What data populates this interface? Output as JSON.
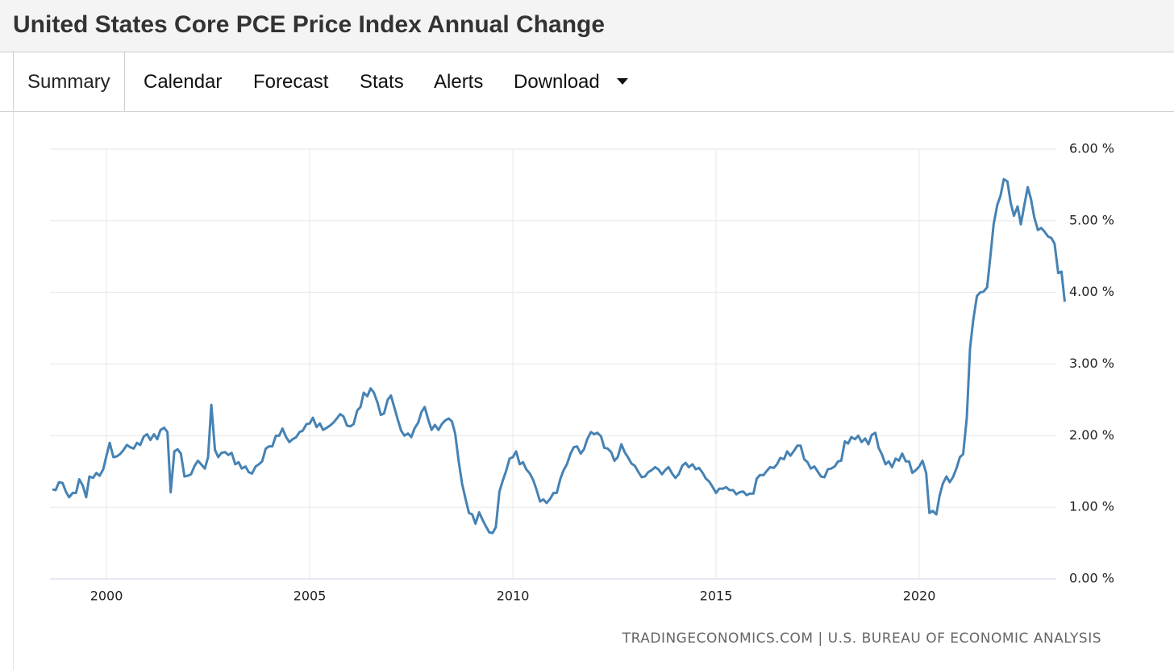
{
  "header": {
    "title": "United States Core PCE Price Index Annual Change"
  },
  "tabs": [
    "Summary",
    "Calendar",
    "Forecast",
    "Stats",
    "Alerts",
    "Download"
  ],
  "chart_data": {
    "type": "line",
    "color": "#4682b4",
    "grid": true,
    "source": "TRADINGECONOMICS.COM | U.S. BUREAU OF ECONOMIC ANALYSIS",
    "xlim": [
      1998.61,
      2023.61
    ],
    "xticks": [
      2000,
      2005,
      2010,
      2015,
      2020
    ],
    "ylim": [
      0,
      6
    ],
    "yticks": [
      {
        "value": 0,
        "label": "0.00 %"
      },
      {
        "value": 1,
        "label": "1.00 %"
      },
      {
        "value": 2,
        "label": "2.00 %"
      },
      {
        "value": 3,
        "label": "3.00 %"
      },
      {
        "value": 4,
        "label": "4.00 %"
      },
      {
        "value": 5,
        "label": "5.00 %"
      },
      {
        "value": 6,
        "label": "6.00 %"
      }
    ],
    "x": [
      1998.67,
      1998.75,
      1998.83,
      1998.92,
      1999,
      1999.08,
      1999.17,
      1999.25,
      1999.33,
      1999.42,
      1999.5,
      1999.58,
      1999.67,
      1999.75,
      1999.83,
      1999.92,
      2000,
      2000.08,
      2000.17,
      2000.25,
      2000.33,
      2000.42,
      2000.5,
      2000.58,
      2000.67,
      2000.75,
      2000.83,
      2000.92,
      2001,
      2001.08,
      2001.17,
      2001.25,
      2001.33,
      2001.42,
      2001.5,
      2001.58,
      2001.67,
      2001.75,
      2001.83,
      2001.92,
      2002,
      2002.08,
      2002.17,
      2002.25,
      2002.33,
      2002.42,
      2002.5,
      2002.58,
      2002.67,
      2002.75,
      2002.83,
      2002.92,
      2003,
      2003.08,
      2003.17,
      2003.25,
      2003.33,
      2003.42,
      2003.5,
      2003.58,
      2003.67,
      2003.75,
      2003.83,
      2003.92,
      2004,
      2004.08,
      2004.17,
      2004.25,
      2004.33,
      2004.42,
      2004.5,
      2004.58,
      2004.67,
      2004.75,
      2004.83,
      2004.92,
      2005,
      2005.08,
      2005.17,
      2005.25,
      2005.33,
      2005.42,
      2005.5,
      2005.58,
      2005.67,
      2005.75,
      2005.83,
      2005.92,
      2006,
      2006.08,
      2006.17,
      2006.25,
      2006.33,
      2006.42,
      2006.5,
      2006.58,
      2006.67,
      2006.75,
      2006.83,
      2006.92,
      2007,
      2007.08,
      2007.17,
      2007.25,
      2007.33,
      2007.42,
      2007.5,
      2007.58,
      2007.67,
      2007.75,
      2007.83,
      2007.92,
      2008,
      2008.08,
      2008.17,
      2008.25,
      2008.33,
      2008.42,
      2008.5,
      2008.58,
      2008.67,
      2008.75,
      2008.83,
      2008.92,
      2009,
      2009.08,
      2009.17,
      2009.25,
      2009.33,
      2009.42,
      2009.5,
      2009.58,
      2009.67,
      2009.75,
      2009.83,
      2009.92,
      2010,
      2010.08,
      2010.17,
      2010.25,
      2010.33,
      2010.42,
      2010.5,
      2010.58,
      2010.67,
      2010.75,
      2010.83,
      2010.92,
      2011,
      2011.08,
      2011.17,
      2011.25,
      2011.33,
      2011.42,
      2011.5,
      2011.58,
      2011.67,
      2011.75,
      2011.83,
      2011.92,
      2012,
      2012.08,
      2012.17,
      2012.25,
      2012.33,
      2012.42,
      2012.5,
      2012.58,
      2012.67,
      2012.75,
      2012.83,
      2012.92,
      2013,
      2013.08,
      2013.17,
      2013.25,
      2013.33,
      2013.42,
      2013.5,
      2013.58,
      2013.67,
      2013.75,
      2013.83,
      2013.92,
      2014,
      2014.08,
      2014.17,
      2014.25,
      2014.33,
      2014.42,
      2014.5,
      2014.58,
      2014.67,
      2014.75,
      2014.83,
      2014.92,
      2015,
      2015.08,
      2015.17,
      2015.25,
      2015.33,
      2015.42,
      2015.5,
      2015.58,
      2015.67,
      2015.75,
      2015.83,
      2015.92,
      2016,
      2016.08,
      2016.17,
      2016.25,
      2016.33,
      2016.42,
      2016.5,
      2016.58,
      2016.67,
      2016.75,
      2016.83,
      2016.92,
      2017,
      2017.08,
      2017.17,
      2017.25,
      2017.33,
      2017.42,
      2017.5,
      2017.58,
      2017.67,
      2017.75,
      2017.83,
      2017.92,
      2018,
      2018.08,
      2018.17,
      2018.25,
      2018.33,
      2018.42,
      2018.5,
      2018.58,
      2018.67,
      2018.75,
      2018.83,
      2018.92,
      2019,
      2019.08,
      2019.17,
      2019.25,
      2019.33,
      2019.42,
      2019.5,
      2019.58,
      2019.67,
      2019.75,
      2019.83,
      2019.92,
      2020,
      2020.08,
      2020.17,
      2020.25,
      2020.33,
      2020.42,
      2020.5,
      2020.58,
      2020.67,
      2020.75,
      2020.83,
      2020.92,
      2021,
      2021.08,
      2021.17,
      2021.25,
      2021.33,
      2021.42,
      2021.5,
      2021.58,
      2021.67,
      2021.75,
      2021.83,
      2021.92,
      2022,
      2022.08,
      2022.17,
      2022.25,
      2022.33,
      2022.42,
      2022.5,
      2022.58,
      2022.67,
      2022.75,
      2022.83,
      2022.92,
      2023,
      2023.08,
      2023.17,
      2023.25,
      2023.33,
      2023.42,
      2023.5,
      2023.58
    ],
    "values": [
      1.25,
      1.24,
      1.35,
      1.34,
      1.22,
      1.14,
      1.2,
      1.2,
      1.39,
      1.3,
      1.14,
      1.43,
      1.41,
      1.48,
      1.44,
      1.53,
      1.72,
      1.9,
      1.7,
      1.71,
      1.74,
      1.8,
      1.87,
      1.84,
      1.82,
      1.9,
      1.87,
      1.99,
      2.02,
      1.94,
      2.02,
      1.95,
      2.08,
      2.11,
      2.05,
      1.21,
      1.78,
      1.81,
      1.75,
      1.43,
      1.44,
      1.46,
      1.58,
      1.65,
      1.6,
      1.54,
      1.7,
      2.43,
      1.8,
      1.7,
      1.76,
      1.77,
      1.73,
      1.76,
      1.6,
      1.63,
      1.54,
      1.57,
      1.49,
      1.47,
      1.57,
      1.6,
      1.64,
      1.82,
      1.85,
      1.85,
      2,
      2,
      2.1,
      1.98,
      1.91,
      1.95,
      1.98,
      2.05,
      2.07,
      2.16,
      2.17,
      2.25,
      2.12,
      2.17,
      2.08,
      2.11,
      2.14,
      2.18,
      2.24,
      2.3,
      2.27,
      2.14,
      2.13,
      2.16,
      2.35,
      2.4,
      2.6,
      2.55,
      2.66,
      2.6,
      2.46,
      2.29,
      2.31,
      2.5,
      2.56,
      2.4,
      2.22,
      2.07,
      2,
      2.03,
      1.98,
      2.1,
      2.18,
      2.33,
      2.4,
      2.22,
      2.08,
      2.15,
      2.08,
      2.16,
      2.21,
      2.24,
      2.2,
      2.03,
      1.63,
      1.33,
      1.13,
      0.92,
      0.9,
      0.77,
      0.93,
      0.83,
      0.74,
      0.65,
      0.64,
      0.72,
      1.22,
      1.37,
      1.5,
      1.68,
      1.7,
      1.78,
      1.6,
      1.63,
      1.53,
      1.47,
      1.38,
      1.25,
      1.08,
      1.11,
      1.06,
      1.12,
      1.2,
      1.2,
      1.4,
      1.52,
      1.6,
      1.75,
      1.84,
      1.85,
      1.75,
      1.81,
      1.95,
      2.05,
      2.02,
      2.04,
      1.99,
      1.83,
      1.82,
      1.77,
      1.65,
      1.7,
      1.88,
      1.77,
      1.7,
      1.61,
      1.58,
      1.5,
      1.42,
      1.43,
      1.49,
      1.52,
      1.56,
      1.53,
      1.46,
      1.52,
      1.56,
      1.47,
      1.41,
      1.46,
      1.58,
      1.62,
      1.56,
      1.6,
      1.53,
      1.55,
      1.48,
      1.4,
      1.36,
      1.28,
      1.2,
      1.26,
      1.26,
      1.28,
      1.24,
      1.24,
      1.18,
      1.21,
      1.22,
      1.17,
      1.19,
      1.19,
      1.4,
      1.45,
      1.45,
      1.51,
      1.56,
      1.55,
      1.6,
      1.69,
      1.67,
      1.78,
      1.72,
      1.79,
      1.86,
      1.86,
      1.67,
      1.63,
      1.54,
      1.57,
      1.5,
      1.43,
      1.42,
      1.53,
      1.54,
      1.57,
      1.64,
      1.65,
      1.92,
      1.89,
      1.98,
      1.95,
      2,
      1.91,
      1.96,
      1.88,
      2.01,
      2.04,
      1.83,
      1.74,
      1.6,
      1.64,
      1.56,
      1.68,
      1.65,
      1.75,
      1.64,
      1.64,
      1.48,
      1.52,
      1.57,
      1.65,
      1.48,
      0.92,
      0.95,
      0.9,
      1.16,
      1.33,
      1.43,
      1.35,
      1.42,
      1.55,
      1.7,
      1.74,
      2.25,
      3.22,
      3.62,
      3.95,
      4,
      4.01,
      4.07,
      4.5,
      4.95,
      5.22,
      5.35,
      5.58,
      5.55,
      5.25,
      5.07,
      5.2,
      4.95,
      5.2,
      5.47,
      5.3,
      5.05,
      4.87,
      4.9,
      4.85,
      4.78,
      4.76,
      4.68,
      4.27,
      4.29,
      3.87
    ]
  }
}
